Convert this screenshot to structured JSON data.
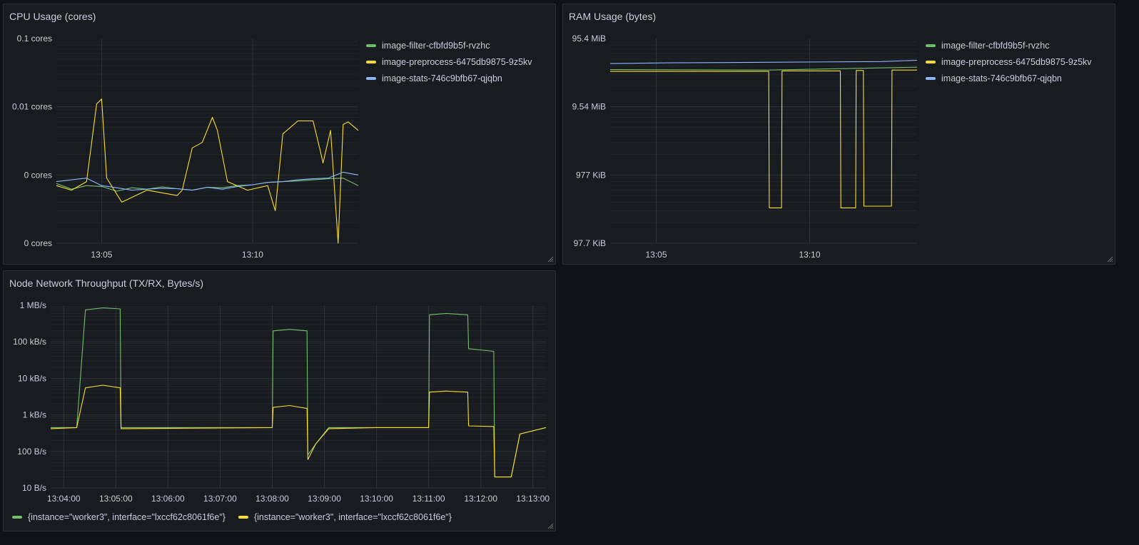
{
  "colors": {
    "green": "#73bf69",
    "yellow": "#fade2a",
    "blue": "#8ab8ff",
    "grid": "#2c3037",
    "panel_bg": "#181b1f"
  },
  "panels": [
    {
      "title": "CPU Usage (cores)",
      "legend": [
        {
          "label": "image-filter-cfbfd9b5f-rvzhc",
          "color": "#73bf69"
        },
        {
          "label": "image-preprocess-6475db9875-9z5kv",
          "color": "#fade2a"
        },
        {
          "label": "image-stats-746c9bfb67-qjqbn",
          "color": "#8ab8ff"
        }
      ]
    },
    {
      "title": "RAM Usage (bytes)",
      "legend": [
        {
          "label": "image-filter-cfbfd9b5f-rvzhc",
          "color": "#73bf69"
        },
        {
          "label": "image-preprocess-6475db9875-9z5kv",
          "color": "#fade2a"
        },
        {
          "label": "image-stats-746c9bfb67-qjqbn",
          "color": "#8ab8ff"
        }
      ]
    },
    {
      "title": "Node Network Throughput (TX/RX, Bytes/s)",
      "legend": [
        {
          "label": "{instance=\"worker3\", interface=\"lxccf62c8061f6e\"}",
          "color": "#73bf69"
        },
        {
          "label": "{instance=\"worker3\", interface=\"lxccf62c8061f6e\"}",
          "color": "#fade2a"
        }
      ]
    }
  ],
  "chart_data": [
    {
      "type": "line",
      "title": "CPU Usage (cores)",
      "yscale": "log",
      "ylim": [
        0.0001,
        0.1
      ],
      "ytick_labels": [
        "0.1 cores",
        "0.01 cores",
        "0 cores",
        "0 cores"
      ],
      "ytick_values": [
        0.1,
        0.01,
        0.001,
        0.0001
      ],
      "xlim": [
        "13:03:30",
        "13:13:30"
      ],
      "xtick_labels": [
        "13:05",
        "13:10"
      ],
      "xtick_values": [
        "13:05:00",
        "13:10:00"
      ],
      "grid": true,
      "legend_position": "right",
      "series": [
        {
          "name": "image-filter-cfbfd9b5f-rvzhc",
          "color": "#73bf69",
          "x": [
            "13:03:30",
            "13:04:00",
            "13:04:30",
            "13:05:00",
            "13:05:30",
            "13:06:00",
            "13:06:30",
            "13:07:00",
            "13:07:30",
            "13:08:00",
            "13:08:30",
            "13:09:00",
            "13:09:30",
            "13:10:00",
            "13:10:30",
            "13:11:00",
            "13:11:30",
            "13:12:00",
            "13:12:30",
            "13:13:00",
            "13:13:30"
          ],
          "y": [
            0.00075,
            0.00062,
            0.0007,
            0.00068,
            0.00058,
            0.00065,
            0.00062,
            0.00067,
            0.00063,
            0.0006,
            0.00066,
            0.00065,
            0.0007,
            0.00072,
            0.00078,
            0.0008,
            0.00082,
            0.00085,
            0.00088,
            0.0009,
            0.0007
          ]
        },
        {
          "name": "image-preprocess-6475db9875-9z5kv",
          "color": "#fade2a",
          "x": [
            "13:03:30",
            "13:04:00",
            "13:04:30",
            "13:04:50",
            "13:05:00",
            "13:05:10",
            "13:05:40",
            "13:06:30",
            "13:07:30",
            "13:07:40",
            "13:08:00",
            "13:08:20",
            "13:08:40",
            "13:08:50",
            "13:09:10",
            "13:09:50",
            "13:10:30",
            "13:10:45",
            "13:11:00",
            "13:11:30",
            "13:12:00",
            "13:12:15",
            "13:12:20",
            "13:12:35",
            "13:12:50",
            "13:13:00",
            "13:13:10",
            "13:13:30"
          ],
          "y": [
            0.0007,
            0.0006,
            0.0008,
            0.011,
            0.013,
            0.0009,
            0.0004,
            0.0006,
            0.0005,
            0.0006,
            0.0025,
            0.003,
            0.007,
            0.0045,
            0.0008,
            0.0006,
            0.0007,
            0.0003,
            0.004,
            0.0062,
            0.0062,
            0.0022,
            0.0015,
            0.0045,
            0.0001,
            0.0055,
            0.006,
            0.0045
          ]
        },
        {
          "name": "image-stats-746c9bfb67-qjqbn",
          "color": "#8ab8ff",
          "x": [
            "13:03:30",
            "13:04:00",
            "13:04:30",
            "13:05:00",
            "13:05:30",
            "13:06:00",
            "13:06:30",
            "13:07:00",
            "13:07:30",
            "13:08:00",
            "13:08:30",
            "13:09:00",
            "13:09:30",
            "13:10:00",
            "13:10:30",
            "13:11:00",
            "13:11:30",
            "13:12:00",
            "13:12:30",
            "13:13:00",
            "13:13:30"
          ],
          "y": [
            0.0008,
            0.00085,
            0.0009,
            0.0007,
            0.00065,
            0.0006,
            0.00062,
            0.00064,
            0.00063,
            0.0006,
            0.00066,
            0.00062,
            0.00068,
            0.00072,
            0.00078,
            0.0008,
            0.00085,
            0.00088,
            0.0009,
            0.0011,
            0.001
          ]
        }
      ]
    },
    {
      "type": "line",
      "title": "RAM Usage (bytes)",
      "yscale": "log",
      "ylim": [
        100000,
        100000000
      ],
      "ytick_labels": [
        "95.4 MiB",
        "9.54 MiB",
        "977 KiB",
        "97.7 KiB"
      ],
      "ytick_values": [
        100000000,
        10000000,
        1000000,
        100000
      ],
      "xlim": [
        "13:03:30",
        "13:13:30"
      ],
      "xtick_labels": [
        "13:05",
        "13:10"
      ],
      "xtick_values": [
        "13:05:00",
        "13:10:00"
      ],
      "grid": true,
      "legend_position": "right",
      "series": [
        {
          "name": "image-filter-cfbfd9b5f-rvzhc",
          "color": "#73bf69",
          "x": [
            "13:03:30",
            "13:08:40",
            "13:13:30"
          ],
          "y": [
            35000000,
            34500000,
            38000000
          ]
        },
        {
          "name": "image-preprocess-6475db9875-9z5kv",
          "color": "#fade2a",
          "x": [
            "13:03:30",
            "13:08:40",
            "13:08:41",
            "13:09:05",
            "13:09:06",
            "13:11:00",
            "13:11:01",
            "13:11:30",
            "13:11:31",
            "13:11:45",
            "13:11:46",
            "13:12:40",
            "13:12:41",
            "13:13:30"
          ],
          "y": [
            33000000,
            33000000,
            330000,
            330000,
            33500000,
            33500000,
            330000,
            330000,
            34000000,
            34000000,
            350000,
            350000,
            34500000,
            34500000
          ]
        },
        {
          "name": "image-stats-746c9bfb67-qjqbn",
          "color": "#8ab8ff",
          "x": [
            "13:03:30",
            "13:05:30",
            "13:09:00",
            "13:12:20",
            "13:13:30"
          ],
          "y": [
            43000000,
            44000000,
            45000000,
            46000000,
            48000000
          ]
        }
      ]
    },
    {
      "type": "line",
      "title": "Node Network Throughput (TX/RX, Bytes/s)",
      "yscale": "log",
      "ylim": [
        10,
        1000000
      ],
      "ytick_labels": [
        "1 MB/s",
        "100 kB/s",
        "10 kB/s",
        "1 kB/s",
        "100 B/s",
        "10 B/s"
      ],
      "ytick_values": [
        1000000,
        100000,
        10000,
        1000,
        100,
        10
      ],
      "xlim": [
        "13:03:45",
        "13:13:15"
      ],
      "xtick_labels": [
        "13:04:00",
        "13:05:00",
        "13:06:00",
        "13:07:00",
        "13:08:00",
        "13:09:00",
        "13:10:00",
        "13:11:00",
        "13:12:00",
        "13:13:00"
      ],
      "xtick_values": [
        "13:04:00",
        "13:05:00",
        "13:06:00",
        "13:07:00",
        "13:08:00",
        "13:09:00",
        "13:10:00",
        "13:11:00",
        "13:12:00",
        "13:13:00"
      ],
      "grid": true,
      "legend_position": "bottom",
      "series": [
        {
          "name": "{instance=\"worker3\", interface=\"lxccf62c8061f6e\"}",
          "color": "#73bf69",
          "x": [
            "13:03:45",
            "13:04:15",
            "13:04:25",
            "13:04:45",
            "13:05:05",
            "13:05:06",
            "13:08:00",
            "13:08:01",
            "13:08:20",
            "13:08:40",
            "13:08:41",
            "13:08:50",
            "13:09:05",
            "13:10:00",
            "13:11:00",
            "13:11:01",
            "13:11:20",
            "13:11:45",
            "13:11:46",
            "13:12:15",
            "13:12:16",
            "13:12:35",
            "13:12:45",
            "13:13:15"
          ],
          "y": [
            450,
            450,
            750000,
            850000,
            800000,
            450,
            450,
            200000,
            220000,
            200000,
            80,
            160,
            450,
            450,
            450,
            550000,
            600000,
            550000,
            65000,
            55000,
            20,
            20,
            300,
            450
          ]
        },
        {
          "name": "{instance=\"worker3\", interface=\"lxccf62c8061f6e\"}",
          "color": "#fade2a",
          "x": [
            "13:03:45",
            "13:04:15",
            "13:04:25",
            "13:04:45",
            "13:05:05",
            "13:05:06",
            "13:08:00",
            "13:08:01",
            "13:08:20",
            "13:08:40",
            "13:08:41",
            "13:08:50",
            "13:09:05",
            "13:10:00",
            "13:11:00",
            "13:11:01",
            "13:11:20",
            "13:11:45",
            "13:11:46",
            "13:12:15",
            "13:12:16",
            "13:12:35",
            "13:12:45",
            "13:13:15"
          ],
          "y": [
            420,
            450,
            5500,
            6500,
            5500,
            420,
            450,
            1600,
            1800,
            1500,
            60,
            160,
            420,
            450,
            450,
            4200,
            4500,
            4200,
            500,
            480,
            20,
            20,
            300,
            450
          ]
        }
      ]
    }
  ]
}
